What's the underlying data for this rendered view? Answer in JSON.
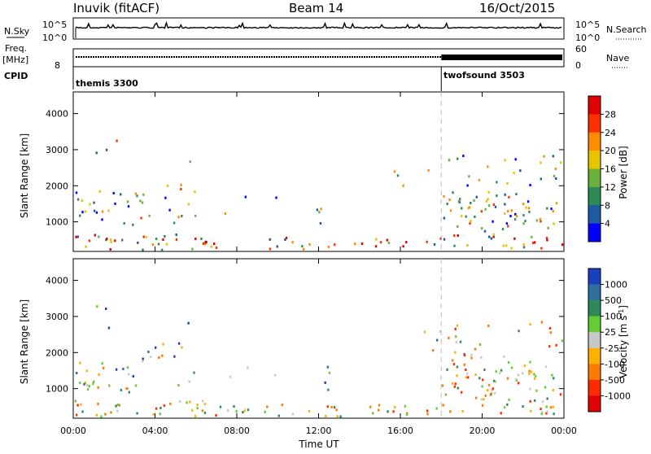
{
  "header": {
    "station": "Inuvik (fitACF)",
    "beam": "Beam 14",
    "date": "16/Oct/2015"
  },
  "chart_data": [
    {
      "type": "line",
      "name": "noise",
      "ylabel_left": "N.Sky",
      "ylabel_right": "N.Search",
      "left_ticks": [
        "10^5",
        "10^0"
      ],
      "right_ticks": [
        "10^5",
        "10^0"
      ],
      "x_range_hours": [
        0,
        24
      ]
    },
    {
      "type": "line",
      "name": "frequency",
      "ylabel_left_top": "Freq.",
      "ylabel_left_bottom": "[MHz]",
      "ylabel_right": "Nave",
      "left_tick": "8",
      "right_ticks": [
        "60",
        "0"
      ],
      "cpid_label": "CPID",
      "programs": [
        {
          "label": "themis 3300",
          "start_hour": 0,
          "end_hour": 18
        },
        {
          "label": "twofsound 3503",
          "start_hour": 18,
          "end_hour": 24
        }
      ]
    },
    {
      "type": "heatmap",
      "name": "power",
      "ylabel": "Slant Range [km]",
      "yticks": [
        1000,
        2000,
        3000,
        4000
      ],
      "ylim": [
        180,
        4600
      ],
      "colorbar_label": "Power [dB]",
      "colorbar_ticks": [
        "4",
        "8",
        "12",
        "16",
        "20",
        "24",
        "28"
      ],
      "colors": [
        "#0000ff",
        "#1e5aa0",
        "#2e8b57",
        "#6ab23c",
        "#e6c400",
        "#ff8c00",
        "#ff3000",
        "#e00000"
      ]
    },
    {
      "type": "heatmap",
      "name": "velocity",
      "ylabel": "Slant Range [km]",
      "yticks": [
        1000,
        2000,
        3000,
        4000
      ],
      "ylim": [
        180,
        4600
      ],
      "colorbar_label": "Velocity [m s",
      "colorbar_label_sup": "-1",
      "colorbar_label_end": "]",
      "colorbar_ticks": [
        "1000",
        "500",
        "100",
        "25",
        "-25",
        "-100",
        "-500",
        "-1000"
      ],
      "colors": [
        "#1a3fbf",
        "#2e6fa0",
        "#2e8b57",
        "#66cc33",
        "#c8c8c8",
        "#ffb000",
        "#ff7a00",
        "#ff2a00",
        "#e00000"
      ],
      "xlabel": "Time UT",
      "xticks": [
        "00:00",
        "04:00",
        "08:00",
        "12:00",
        "16:00",
        "20:00",
        "00:00"
      ]
    }
  ]
}
